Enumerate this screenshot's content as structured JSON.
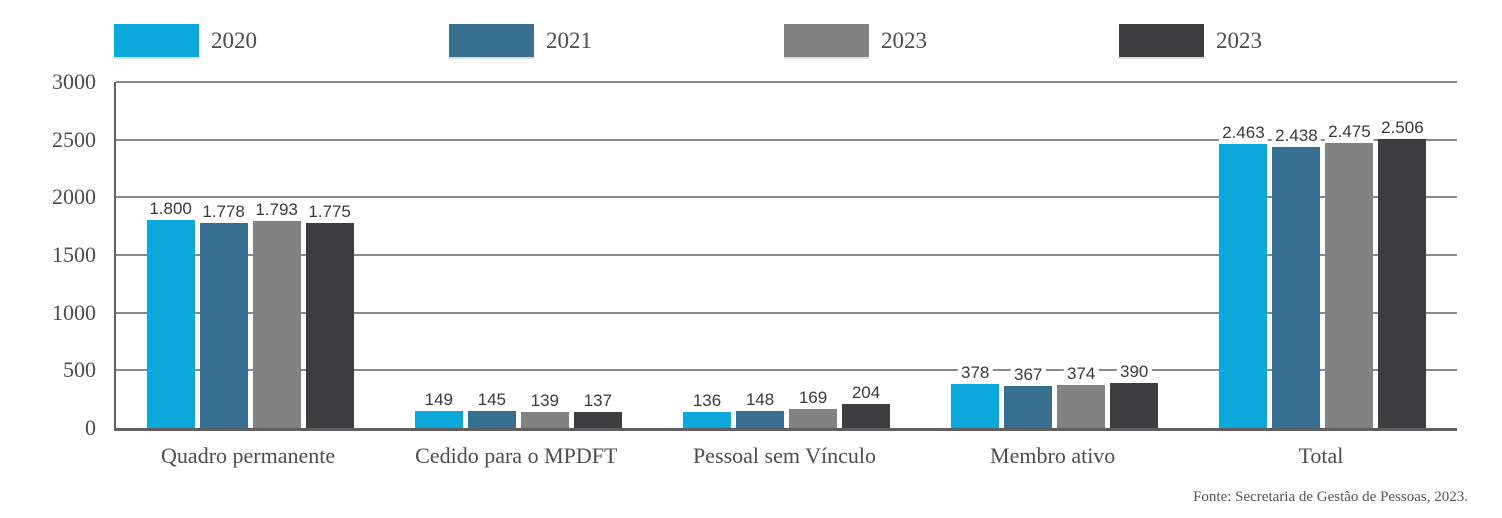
{
  "chart_data": {
    "type": "bar",
    "title": "",
    "xlabel": "",
    "ylabel": "",
    "categories": [
      "Quadro permanente",
      "Cedido para o MPDFT",
      "Pessoal sem Vínculo",
      "Membro ativo",
      "Total"
    ],
    "series": [
      {
        "name": "2020",
        "color": "#0aa8db",
        "values": [
          1800,
          149,
          136,
          378,
          2463
        ],
        "labels": [
          "1.800",
          "149",
          "136",
          "378",
          "2.463"
        ]
      },
      {
        "name": "2021",
        "color": "#376f91",
        "values": [
          1778,
          145,
          148,
          367,
          2438
        ],
        "labels": [
          "1.778",
          "145",
          "148",
          "367",
          "2.438"
        ]
      },
      {
        "name": "2023",
        "color": "#828282",
        "values": [
          1793,
          139,
          169,
          374,
          2475
        ],
        "labels": [
          "1.793",
          "139",
          "169",
          "374",
          "2.475"
        ]
      },
      {
        "name": "2023",
        "color": "#3d3c3e",
        "values": [
          1775,
          137,
          204,
          390,
          2506
        ],
        "labels": [
          "1.775",
          "137",
          "204",
          "390",
          "2.506"
        ]
      }
    ],
    "ylim": [
      0,
      3000
    ],
    "yticks": [
      0,
      500,
      1000,
      1500,
      2000,
      2500,
      3000
    ],
    "grid": true,
    "legend_position": "top"
  },
  "footer": {
    "source": "Fonte: Secretaria de Gestão de Pessoas, 2023."
  },
  "colors": {
    "grid": "#8a8a8a",
    "axis": "#5f5f5f",
    "tick_text": "#4d4d4d",
    "value_label_text": "#3a3a3a"
  }
}
